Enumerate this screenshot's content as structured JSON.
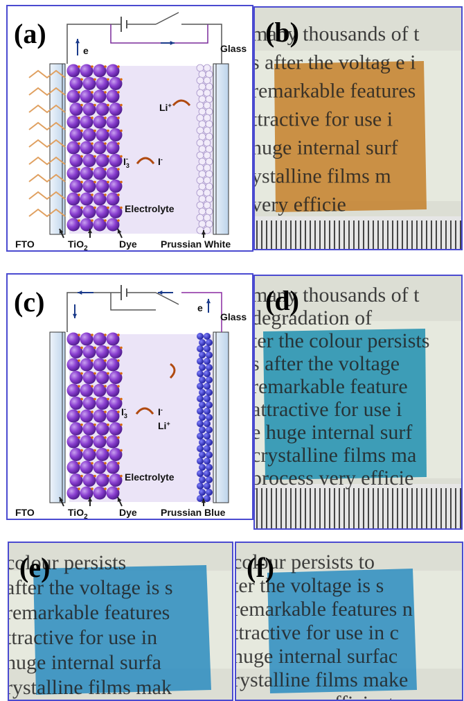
{
  "panels": [
    {
      "label": "(a)",
      "electron": "e",
      "glass": "Glass",
      "ion": "Li",
      "ion_charge": "+",
      "triiodide": "I",
      "triiodide_sub": "3",
      "triiodide_charge": "-",
      "iodide": "I",
      "iodide_charge": "-",
      "electrolyte": "Electrolyte",
      "fto": "FTO",
      "tio2": "TiO",
      "tio2_sub": "2",
      "dye": "Dye",
      "counter": "Prussian White"
    },
    {
      "label": "(c)",
      "electron": "e",
      "glass": "Glass",
      "ion": "Li",
      "ion_charge": "+",
      "triiodide": "I",
      "triiodide_sub": "3",
      "triiodide_charge": "-",
      "iodide": "I",
      "iodide_charge": "-",
      "electrolyte": "Electrolyte",
      "fto": "FTO",
      "tio2": "TiO",
      "tio2_sub": "2",
      "dye": "Dye",
      "counter": "Prussian Blue"
    }
  ],
  "photos": [
    {
      "label": "(b)",
      "lines": [
        "many thousands of t",
        "s after the voltag e i",
        "remarkable features",
        "ttractive for use i",
        "huge internal surf",
        "ystalline films m",
        "very efficie"
      ]
    },
    {
      "label": "(d)",
      "lines": [
        "many thousands of t",
        "degradation of",
        "ter the colour persists",
        "s after the voltage",
        "remarkable feature",
        "attractive for use i",
        "e huge internal surf",
        "crystalline films ma",
        "process very efficie"
      ]
    },
    {
      "label": "(e)",
      "lines": [
        "colour persists",
        "after the voltage is s",
        "remarkable features",
        "ttractive for use in",
        "huge internal surfa",
        "rystalline films mak"
      ]
    },
    {
      "label": "(f)",
      "lines": [
        "colour persists to",
        "ter the voltage is s",
        "remarkable features n",
        "ttractive for use in c",
        "huge internal surfac",
        "rystalline films make",
        "ocess very efficient"
      ]
    }
  ]
}
